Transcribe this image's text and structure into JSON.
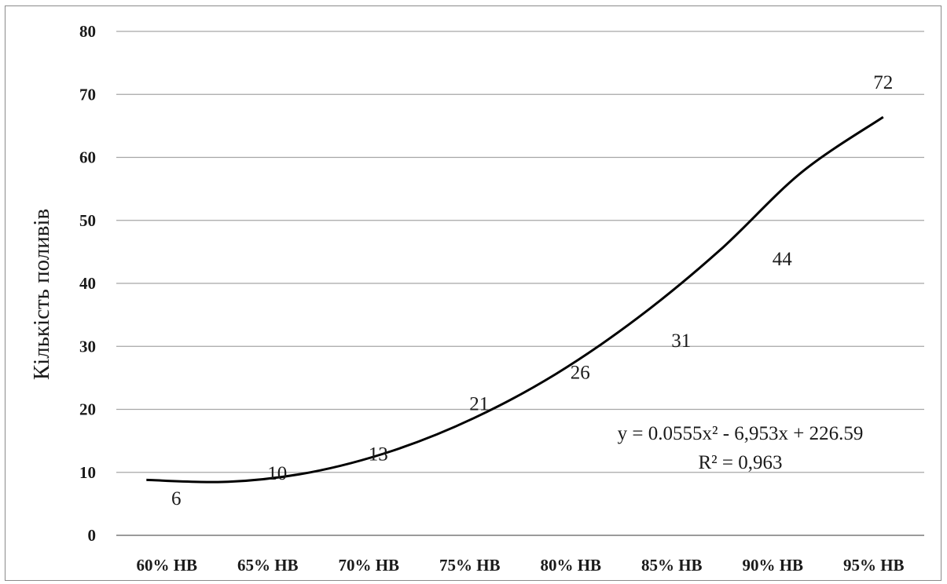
{
  "chart_data": {
    "type": "line",
    "title": "",
    "xlabel": "",
    "ylabel": "Кількість поливів",
    "categories": [
      "60% HB",
      "65% HB",
      "70% HB",
      "75% HB",
      "80% HB",
      "85% HB",
      "90% HB",
      "95% HB"
    ],
    "series": [
      {
        "values": [
          6,
          10,
          13,
          21,
          26,
          31,
          44,
          72
        ],
        "data_labels": [
          "6",
          "10",
          "13",
          "21",
          "26",
          "31",
          "44",
          "72"
        ]
      }
    ],
    "trendline": {
      "kind": "polynomial-2",
      "equation": "y = 0.0555x² - 6,953x + 226.59",
      "r_squared": "R² = 0,963",
      "values": [
        8.8,
        8.5,
        10.0,
        13.4,
        18.6,
        25.6,
        34.5,
        45.2,
        57.6,
        66.4
      ]
    },
    "y_ticks": [
      "0",
      "10",
      "20",
      "30",
      "40",
      "50",
      "60",
      "70",
      "80"
    ],
    "ylim": [
      0,
      80
    ],
    "grid": true,
    "legend": "none",
    "colors": {
      "line": "#000000",
      "grid": "#a6a6a6"
    }
  }
}
